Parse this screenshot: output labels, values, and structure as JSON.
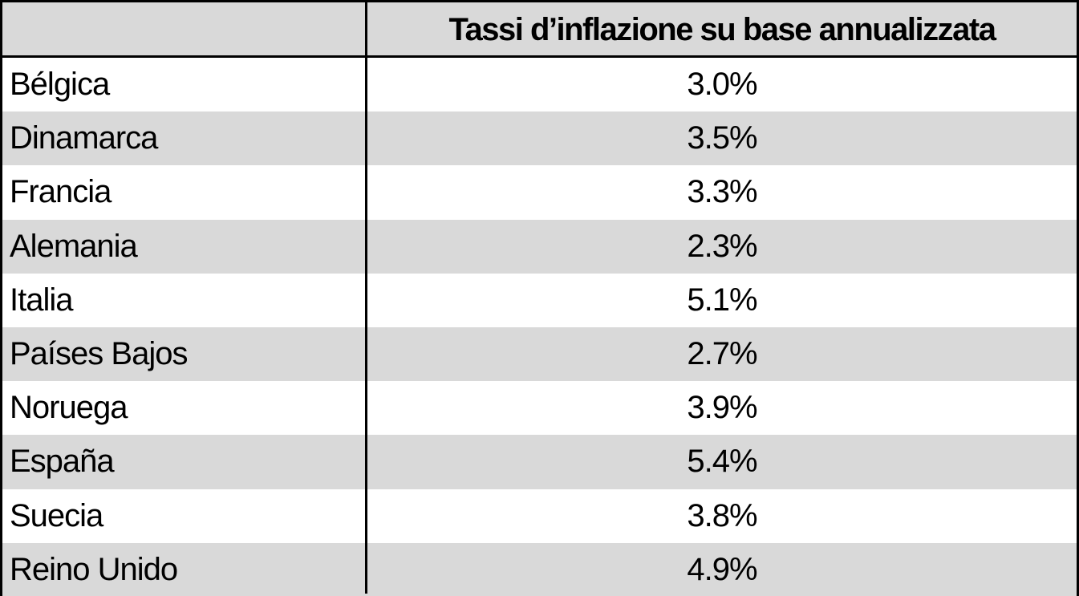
{
  "table": {
    "header": {
      "column": "Tassi d’inflazione su base annualizzata"
    },
    "rows": [
      [
        "Bélgica",
        "3.0%"
      ],
      [
        "Dinamarca",
        "3.5%"
      ],
      [
        "Francia",
        "3.3%"
      ],
      [
        "Alemania",
        "2.3%"
      ],
      [
        "Italia",
        "5.1%"
      ],
      [
        "Países Bajos",
        "2.7%"
      ],
      [
        "Noruega",
        "3.9%"
      ],
      [
        "España",
        "5.4%"
      ],
      [
        "Suecia",
        "3.8%"
      ],
      [
        "Reino Unido",
        "4.9%"
      ]
    ]
  }
}
